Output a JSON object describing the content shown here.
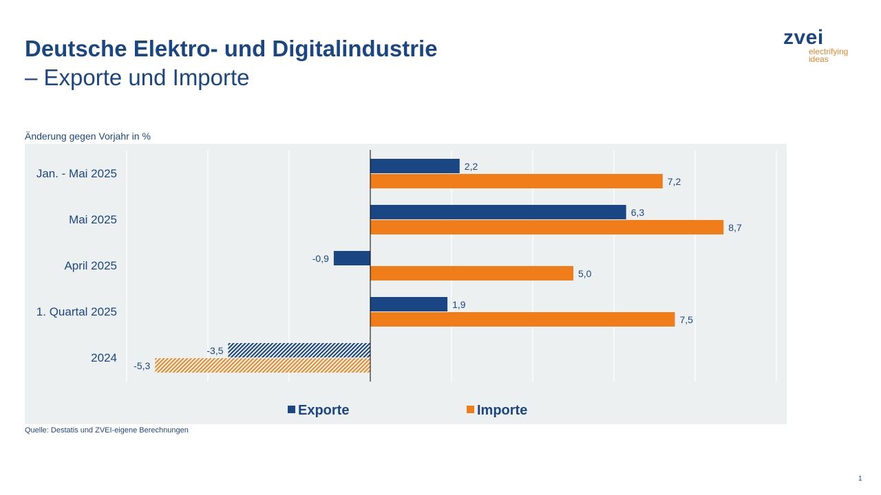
{
  "header": {
    "title_line1": "Deutsche Elektro- und Digitalindustrie",
    "title_line2": "– Exporte und Importe"
  },
  "logo": {
    "word": "zvei",
    "tagline_1": "electrifying",
    "tagline_2": "ideas"
  },
  "footer": {
    "source": "Quelle: Destatis und ZVEI-eigene Berechnungen",
    "page_number": "1"
  },
  "colors": {
    "exporte": "#1b4684",
    "importe": "#f07d1a",
    "plot_background": "#ecf0f1"
  },
  "chart_data": {
    "type": "bar",
    "orientation": "horizontal",
    "ylabel": "Änderung gegen Vorjahr in %",
    "categories": [
      "Jan. - Mai 2025",
      "Mai 2025",
      "April 2025",
      "1. Quartal 2025",
      "2024"
    ],
    "series": [
      {
        "name": "Exporte",
        "values": [
          2.2,
          6.3,
          -0.9,
          1.9,
          -3.5
        ],
        "labels": [
          "2,2",
          "6,3",
          "-0,9",
          "1,9",
          "-3,5"
        ]
      },
      {
        "name": "Importe",
        "values": [
          7.2,
          8.7,
          5.0,
          7.5,
          -5.3
        ],
        "labels": [
          "7,2",
          "8,7",
          "5,0",
          "7,5",
          "-5,3"
        ]
      }
    ],
    "hatched_categories": [
      "2024"
    ],
    "xlim": [
      -6,
      10
    ],
    "grid_step": 2,
    "grid": true,
    "legend": "bottom"
  }
}
